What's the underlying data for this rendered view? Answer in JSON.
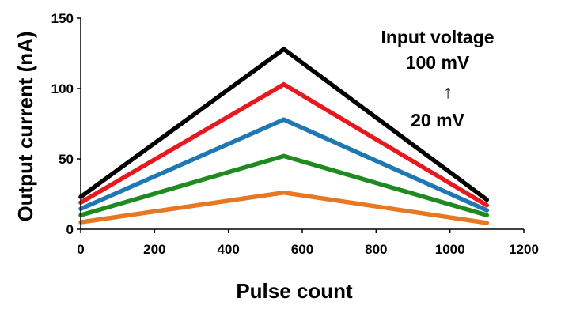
{
  "chart_data": {
    "type": "line",
    "xlabel": "Pulse count",
    "ylabel": "Output current (nA)",
    "xlim": [
      0,
      1200
    ],
    "ylim": [
      0,
      150
    ],
    "xticks": [
      "0",
      "200",
      "400",
      "600",
      "800",
      "1000",
      "1200"
    ],
    "yticks": [
      "0",
      "50",
      "100",
      "150"
    ],
    "grid": false,
    "annotation": [
      "Input voltage",
      "100 mV",
      "↑",
      "20 mV"
    ],
    "series": [
      {
        "color": "#000000",
        "x": [
          0,
          550,
          1100
        ],
        "y": [
          23,
          128,
          21
        ]
      },
      {
        "color": "#e8181e",
        "x": [
          0,
          550,
          1100
        ],
        "y": [
          19,
          103,
          17
        ]
      },
      {
        "color": "#1f77b4",
        "x": [
          0,
          550,
          1100
        ],
        "y": [
          14.5,
          78,
          13.5
        ]
      },
      {
        "color": "#1e8a20",
        "x": [
          0,
          550,
          1100
        ],
        "y": [
          10,
          52,
          10
        ]
      },
      {
        "color": "#e87722",
        "x": [
          0,
          550,
          1100
        ],
        "y": [
          5,
          26,
          4.5
        ]
      }
    ]
  }
}
